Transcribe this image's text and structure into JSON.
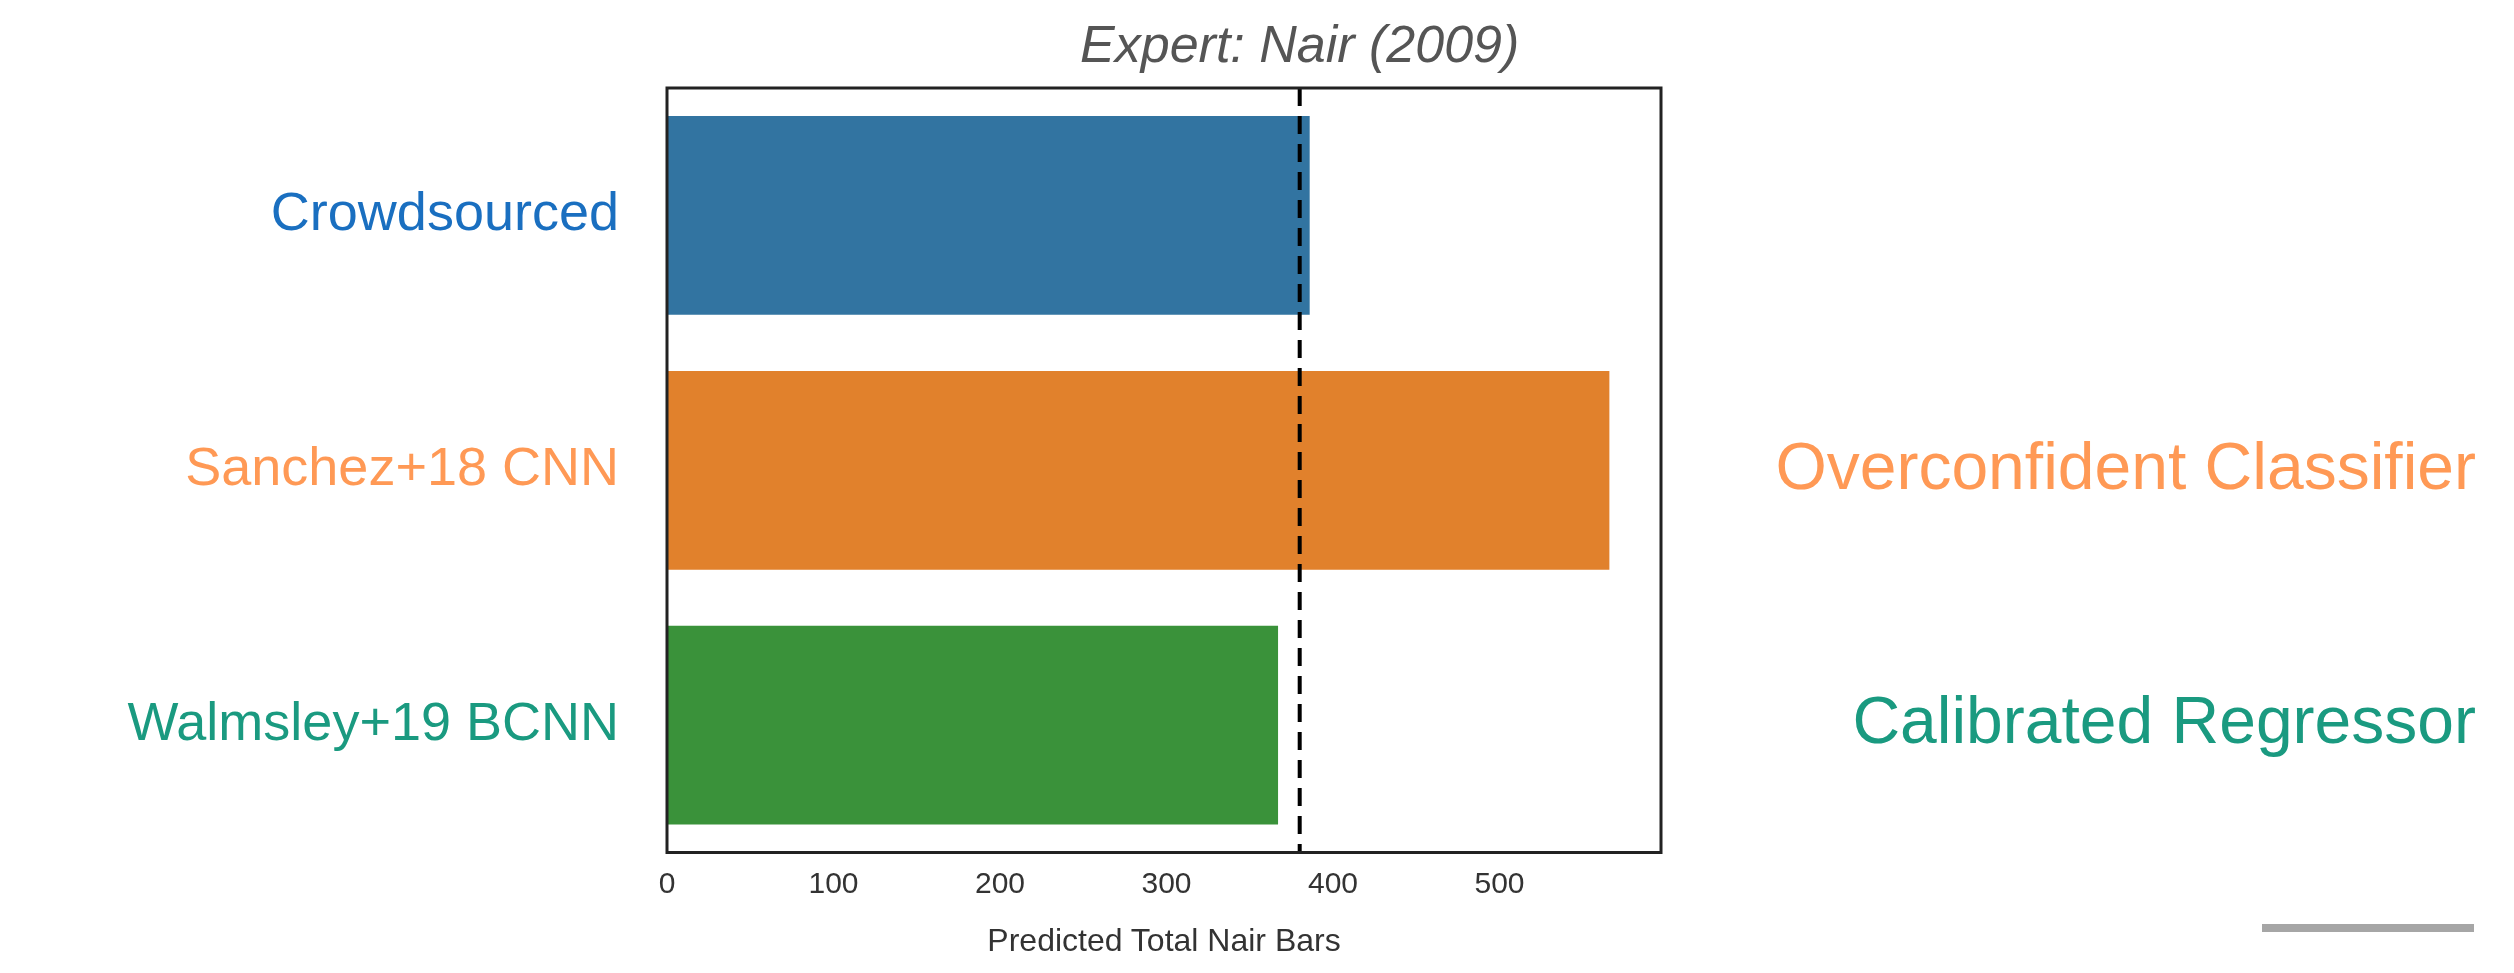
{
  "chart_data": {
    "type": "bar",
    "orientation": "horizontal",
    "categories": [
      "Crowdsourced",
      "Sanchez+18 CNN",
      "Walmsley+19 BCNN"
    ],
    "values": [
      386,
      566,
      367
    ],
    "colors": [
      "#3274a1",
      "#e1812c",
      "#3a923a"
    ],
    "xlim": [
      0,
      597
    ],
    "xticks": [
      0,
      100,
      200,
      300,
      400,
      500
    ],
    "xlabel": "Predicted Total Nair Bars",
    "ref_lines": [
      {
        "axis": "x",
        "value": 380,
        "label": "Expert: Nair (2009)",
        "color": "#000000",
        "line_style": "dashed"
      }
    ],
    "annotations": [
      "Overconfident Classifier",
      "Calibrated Regressor"
    ],
    "grid": false,
    "legend": false
  }
}
